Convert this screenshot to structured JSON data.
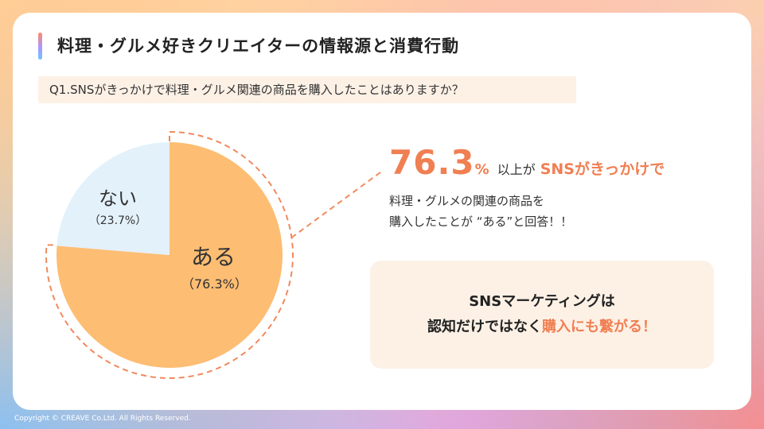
{
  "header": {
    "title": "料理・グルメ好きクリエイターの情報源と消費行動"
  },
  "question": "Q1.SNSがきっかけで料理・グルメ関連の商品を購入したことはありますか？",
  "chart_data": {
    "type": "pie",
    "slices": [
      {
        "label": "ある",
        "value": 76.3,
        "pct_label": "（76.3%）",
        "color": "#fdbd73"
      },
      {
        "label": "ない",
        "value": 23.7,
        "pct_label": "（23.7%）",
        "color": "#e3f1fb"
      }
    ]
  },
  "highlight": {
    "number": "76.3",
    "percent": "%",
    "mid_text": "以上が",
    "tail_text": "SNSがきっかけで",
    "accent_color": "#f07f52"
  },
  "description": {
    "line1": "料理・グルメの関連の商品を",
    "line2": "購入したことが “ある”と回答！！"
  },
  "callout": {
    "line1": "SNSマーケティングは",
    "line2_plain": "認知だけではなく",
    "line2_highlight": "購入にも繋がる！"
  },
  "footer": {
    "copyright": "Copyright © CREAVE Co.Ltd. All Rights Reserved."
  }
}
